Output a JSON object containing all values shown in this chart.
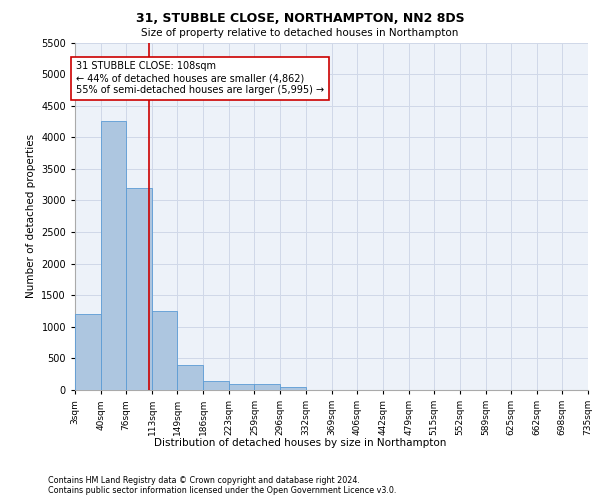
{
  "title1": "31, STUBBLE CLOSE, NORTHAMPTON, NN2 8DS",
  "title2": "Size of property relative to detached houses in Northampton",
  "xlabel": "Distribution of detached houses by size in Northampton",
  "ylabel": "Number of detached properties",
  "footnote1": "Contains HM Land Registry data © Crown copyright and database right 2024.",
  "footnote2": "Contains public sector information licensed under the Open Government Licence v3.0.",
  "annotation_title": "31 STUBBLE CLOSE: 108sqm",
  "annotation_line1": "← 44% of detached houses are smaller (4,862)",
  "annotation_line2": "55% of semi-detached houses are larger (5,995) →",
  "property_size": 108,
  "bin_edges": [
    3,
    40,
    76,
    113,
    149,
    186,
    223,
    259,
    296,
    332,
    369,
    406,
    442,
    479,
    515,
    552,
    589,
    625,
    662,
    698,
    735
  ],
  "bin_values": [
    1200,
    4250,
    3200,
    1250,
    400,
    150,
    100,
    100,
    50,
    0,
    0,
    0,
    0,
    0,
    0,
    0,
    0,
    0,
    0,
    0
  ],
  "bar_color": "#adc6e0",
  "bar_edge_color": "#5b9bd5",
  "vline_color": "#cc0000",
  "annotation_box_edge": "#cc0000",
  "annotation_box_face": "#ffffff",
  "grid_color": "#d0d8e8",
  "bg_color": "#edf2f9",
  "ylim": [
    0,
    5500
  ],
  "yticks": [
    0,
    500,
    1000,
    1500,
    2000,
    2500,
    3000,
    3500,
    4000,
    4500,
    5000,
    5500
  ]
}
